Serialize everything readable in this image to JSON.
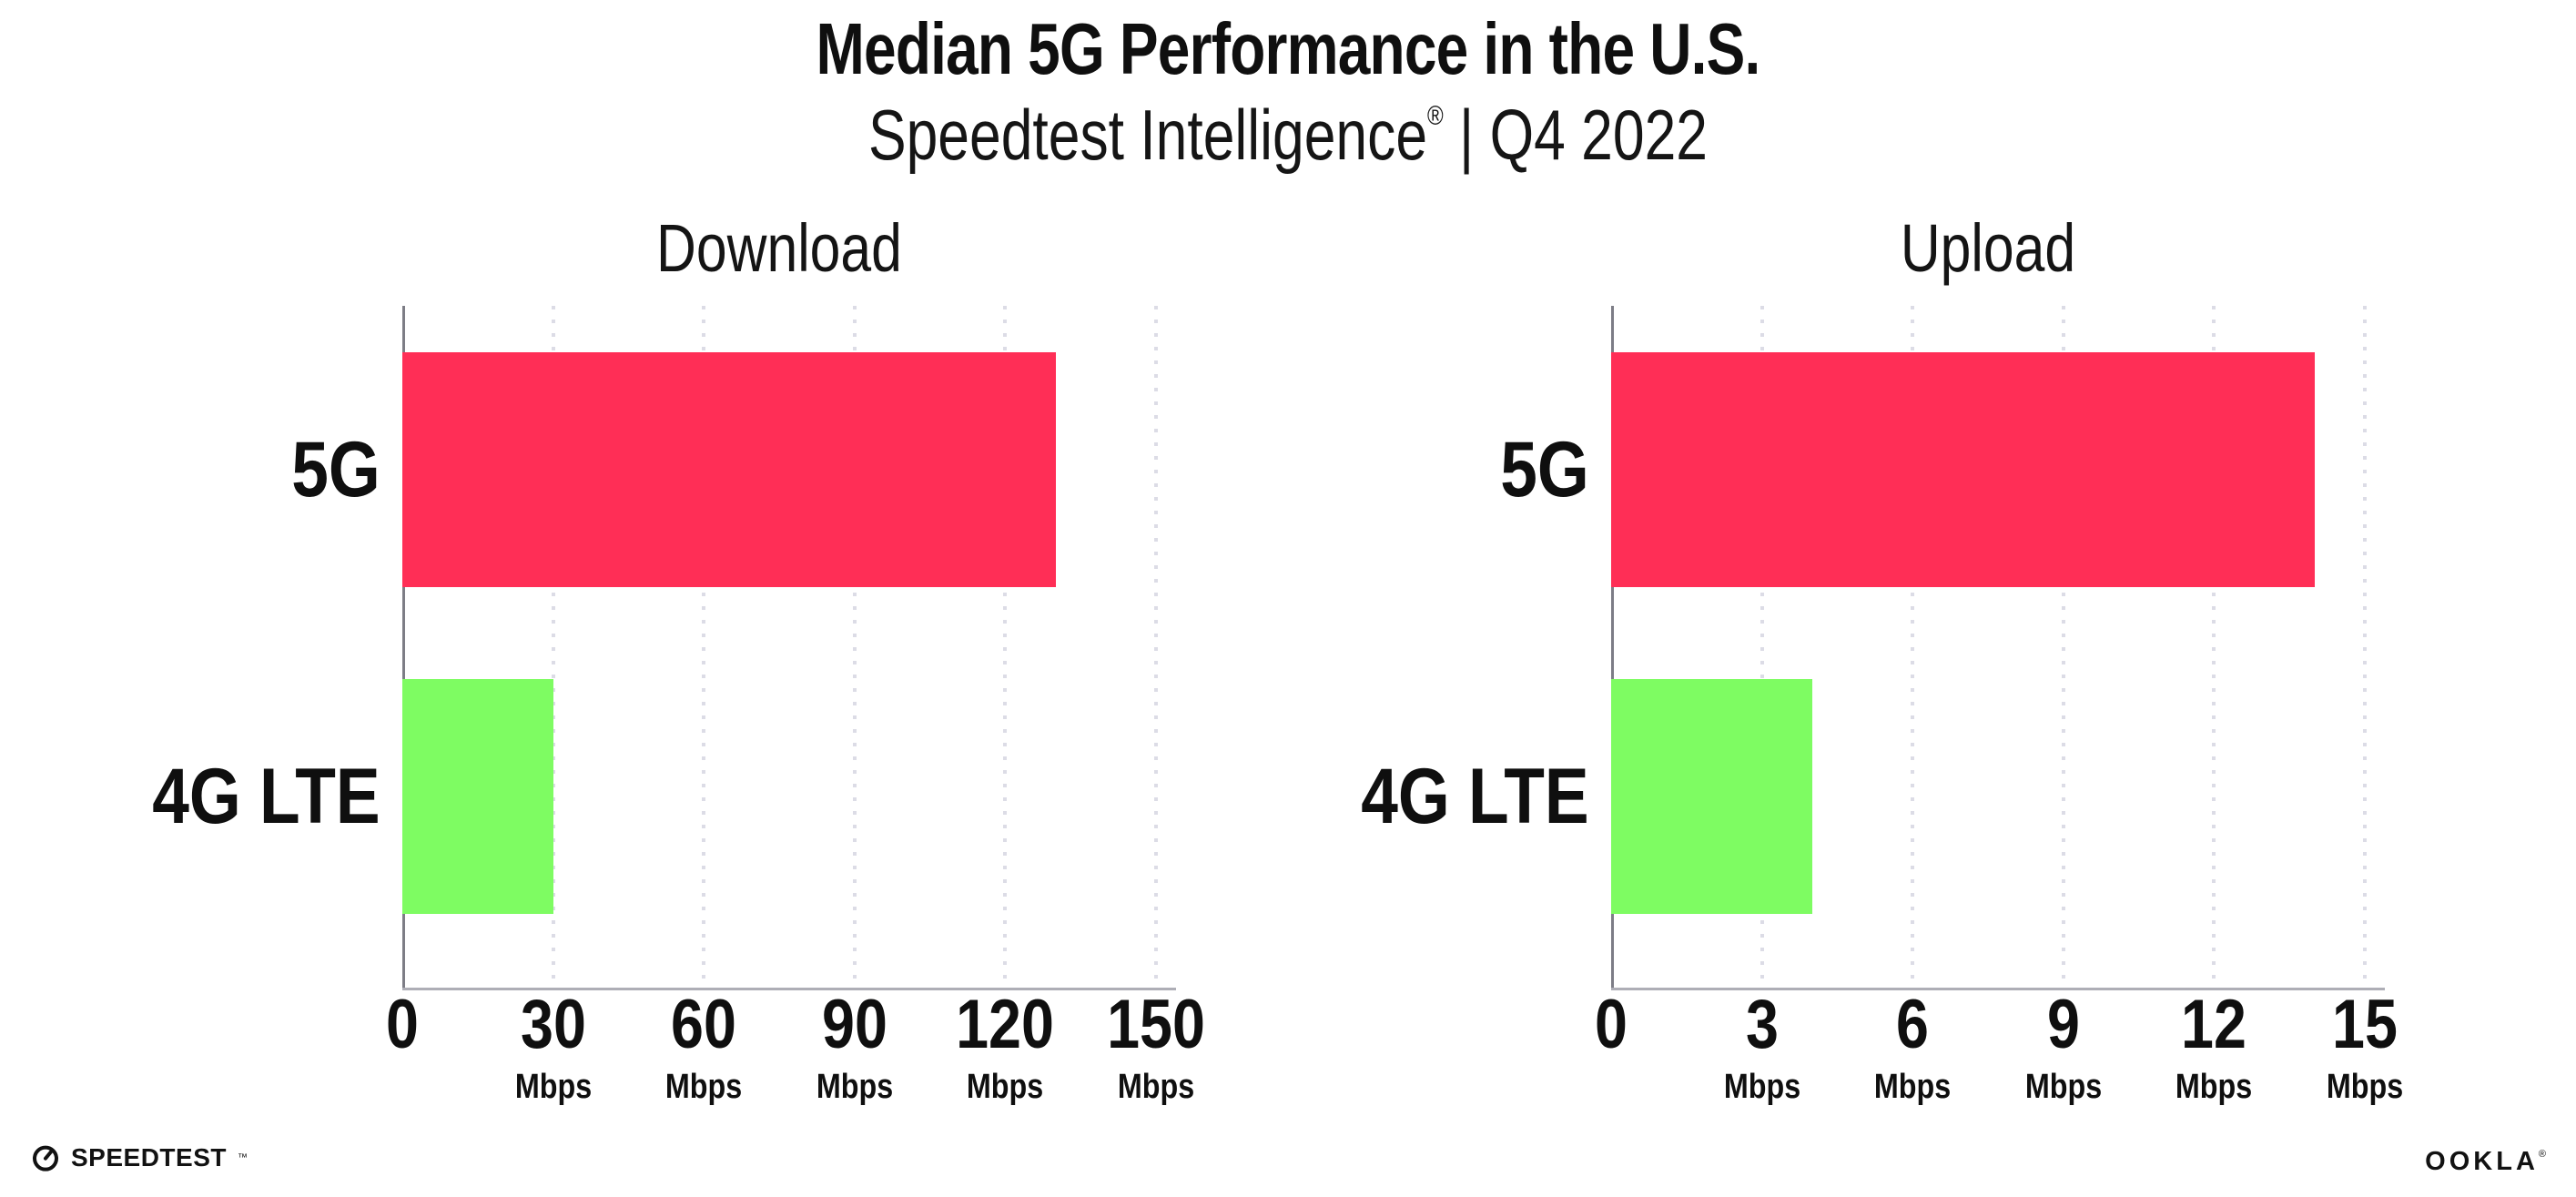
{
  "header": {
    "title": "Median 5G Performance in the U.S.",
    "subtitle": {
      "brand": "Speedtest Intelligence",
      "mark": "®",
      "rest": " | Q4 2022"
    }
  },
  "chart_data": [
    {
      "type": "bar",
      "orientation": "horizontal",
      "title": "Download",
      "categories": [
        "5G",
        "4G LTE"
      ],
      "values_mbps": [
        130,
        30
      ],
      "unit": "Mbps",
      "xlabel": "",
      "xlim": [
        0,
        150
      ],
      "xticks": [
        0,
        30,
        60,
        90,
        120,
        150
      ],
      "bar_colors": [
        "#FF2E56",
        "#7EFC62"
      ],
      "grid": "dotted vertical gridlines at each tick",
      "legend": "none"
    },
    {
      "type": "bar",
      "orientation": "horizontal",
      "title": "Upload",
      "categories": [
        "5G",
        "4G LTE"
      ],
      "values_mbps": [
        14,
        4
      ],
      "unit": "Mbps",
      "xlabel": "",
      "xlim": [
        0,
        15
      ],
      "xticks": [
        0,
        3,
        6,
        9,
        12,
        15
      ],
      "bar_colors": [
        "#FF2E56",
        "#7EFC62"
      ],
      "grid": "dotted vertical gridlines at each tick",
      "legend": "none"
    }
  ],
  "colors": {
    "bar_5g": "#FF2E56",
    "bar_4g_lte": "#7EFC62",
    "text": "#0F0F0F",
    "y_axis_line": "#7D7D86",
    "x_axis_line": "#AEAEB6",
    "gridline": "#DCDCE6",
    "background": "#FFFFFF"
  },
  "footer": {
    "speedtest": {
      "label": "SPEEDTEST",
      "mark": "™"
    },
    "ookla": {
      "label": "OOKLA",
      "mark": "®"
    }
  }
}
